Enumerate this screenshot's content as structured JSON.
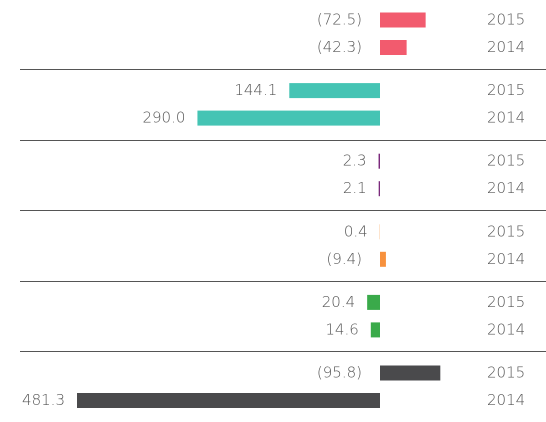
{
  "chart_data": {
    "type": "bar",
    "orientation": "horizontal",
    "categories": [
      "2015",
      "2014",
      "2015",
      "2014",
      "2015",
      "2014",
      "2015",
      "2014",
      "2015",
      "2014",
      "2015",
      "2014"
    ],
    "values": [
      -72.5,
      -42.3,
      144.1,
      290.0,
      2.3,
      2.1,
      0.4,
      -9.4,
      20.4,
      14.6,
      -95.8,
      481.3
    ],
    "value_labels": [
      "(72.5)",
      "(42.3)",
      "144.1",
      "290.0",
      "2.3",
      "2.1",
      "0.4",
      "(9.4)",
      "20.4",
      "14.6",
      "(95.8)",
      "481.3"
    ],
    "colors": [
      "#f25b6e",
      "#f25b6e",
      "#45c4b4",
      "#45c4b4",
      "#7b2a7c",
      "#7b2a7c",
      "#f7913d",
      "#f7913d",
      "#3aaa4a",
      "#3aaa4a",
      "#4a4a4c",
      "#4a4a4c"
    ]
  }
}
